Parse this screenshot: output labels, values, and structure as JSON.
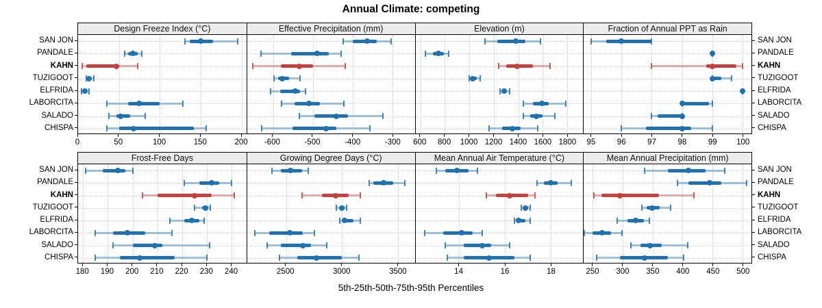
{
  "figure": {
    "title": "Annual Climate: competing",
    "caption": "5th-25th-50th-75th-95th Percentiles"
  },
  "colors": {
    "series_default": "#1f72b2",
    "series_highlight": "#c5403e",
    "strip_background": "#ececec",
    "gridline": "#c6c6c6",
    "border": "#000000"
  },
  "stations": [
    "SAN JON",
    "PANDALE",
    "KAHN",
    "TUZIGOOT",
    "ELFRIDA",
    "LABORCITA",
    "SALADO",
    "CHISPA"
  ],
  "highlight_station": "KAHN",
  "chart_data": {
    "type": "scatter",
    "subtype": "percentile-interval-dotplot-trellis",
    "percentiles": [
      5,
      25,
      50,
      75,
      95
    ],
    "layout": {
      "rows": 2,
      "cols": 4,
      "grid": "dotted",
      "legend": "none",
      "row_labels_both_sides": true
    },
    "panels": [
      {
        "title": "Design Freeze Index (°C)",
        "xlim": [
          0,
          206
        ],
        "ticks": [
          0,
          50,
          100,
          150,
          200
        ],
        "series": [
          {
            "station": "SAN JON",
            "percentiles": [
              131,
              137,
              150,
              165,
              195
            ]
          },
          {
            "station": "PANDALE",
            "percentiles": [
              57,
              61,
              67,
              73,
              78
            ]
          },
          {
            "station": "KAHN",
            "percentiles": [
              5,
              10,
              47,
              50,
              73
            ]
          },
          {
            "station": "TUZIGOOT",
            "percentiles": [
              10,
              12,
              13,
              16,
              19
            ]
          },
          {
            "station": "ELFRIDA",
            "percentiles": [
              4,
              6,
              8,
              10,
              13
            ]
          },
          {
            "station": "LABORCITA",
            "percentiles": [
              35,
              61,
              75,
              100,
              128
            ]
          },
          {
            "station": "SALADO",
            "percentiles": [
              38,
              47,
              52,
              64,
              82
            ]
          },
          {
            "station": "CHISPA",
            "percentiles": [
              35,
              50,
              68,
              142,
              157
            ]
          }
        ]
      },
      {
        "title": "Effective Precipitation (mm)",
        "xlim": [
          -665,
          -245
        ],
        "ticks": [
          -600,
          -500,
          -400,
          -300
        ],
        "series": [
          {
            "station": "SAN JON",
            "percentiles": [
              -425,
              -400,
              -365,
              -340,
              -305
            ]
          },
          {
            "station": "PANDALE",
            "percentiles": [
              -630,
              -555,
              -490,
              -460,
              -430
            ]
          },
          {
            "station": "KAHN",
            "percentiles": [
              -650,
              -580,
              -535,
              -500,
              -420
            ]
          },
          {
            "station": "TUZIGOOT",
            "percentiles": [
              -597,
              -587,
              -577,
              -560,
              -532
            ]
          },
          {
            "station": "ELFRIDA",
            "percentiles": [
              -607,
              -582,
              -545,
              -533,
              -518
            ]
          },
          {
            "station": "LABORCITA",
            "percentiles": [
              -578,
              -547,
              -510,
              -482,
              -423
            ]
          },
          {
            "station": "SALADO",
            "percentiles": [
              -535,
              -497,
              -442,
              -412,
              -325
            ]
          },
          {
            "station": "CHISPA",
            "percentiles": [
              -628,
              -552,
              -467,
              -441,
              -357
            ]
          }
        ]
      },
      {
        "title": "Elevation (m)",
        "xlim": [
          560,
          1930
        ],
        "ticks": [
          600,
          800,
          1000,
          1200,
          1400,
          1600,
          1800
        ],
        "series": [
          {
            "station": "SAN JON",
            "percentiles": [
              1130,
              1230,
              1380,
              1460,
              1580
            ]
          },
          {
            "station": "PANDALE",
            "percentiles": [
              640,
              700,
              750,
              790,
              830
            ]
          },
          {
            "station": "KAHN",
            "percentiles": [
              1240,
              1300,
              1390,
              1520,
              1660
            ]
          },
          {
            "station": "TUZIGOOT",
            "percentiles": [
              1000,
              1015,
              1030,
              1060,
              1090
            ]
          },
          {
            "station": "ELFRIDA",
            "percentiles": [
              1250,
              1265,
              1285,
              1310,
              1330
            ]
          },
          {
            "station": "LABORCITA",
            "percentiles": [
              1440,
              1520,
              1590,
              1650,
              1790
            ]
          },
          {
            "station": "SALADO",
            "percentiles": [
              1440,
              1500,
              1550,
              1600,
              1700
            ]
          },
          {
            "station": "CHISPA",
            "percentiles": [
              1160,
              1270,
              1350,
              1420,
              1560
            ]
          }
        ]
      },
      {
        "title": "Fraction of Annual PPT as Rain",
        "xlim": [
          94.75,
          100.3
        ],
        "ticks": [
          95,
          96,
          97,
          98,
          99,
          100
        ],
        "series": [
          {
            "station": "SAN JON",
            "percentiles": [
              95,
              95.5,
              96,
              97,
              97
            ]
          },
          {
            "station": "PANDALE",
            "percentiles": [
              99,
              99,
              99,
              99,
              99
            ]
          },
          {
            "station": "KAHN",
            "percentiles": [
              97,
              98.8,
              99,
              99.8,
              100
            ]
          },
          {
            "station": "TUZIGOOT",
            "percentiles": [
              99,
              99,
              99,
              99.3,
              99.65
            ]
          },
          {
            "station": "ELFRIDA",
            "percentiles": [
              100,
              100,
              100,
              100,
              100
            ]
          },
          {
            "station": "LABORCITA",
            "percentiles": [
              98,
              98,
              98,
              98.9,
              99
            ]
          },
          {
            "station": "SALADO",
            "percentiles": [
              97,
              97.2,
              98,
              98,
              98
            ]
          },
          {
            "station": "CHISPA",
            "percentiles": [
              96,
              96.8,
              98,
              98.3,
              99
            ]
          }
        ]
      },
      {
        "title": "Frost-Free Days",
        "xlim": [
          178,
          246
        ],
        "ticks": [
          180,
          190,
          200,
          210,
          220,
          230,
          240
        ],
        "series": [
          {
            "station": "SAN JON",
            "percentiles": [
              181,
              188,
              194,
              197,
              200
            ]
          },
          {
            "station": "PANDALE",
            "percentiles": [
              221,
              227,
              232,
              235,
              240
            ]
          },
          {
            "station": "KAHN",
            "percentiles": [
              204,
              210,
              225,
              232,
              241
            ]
          },
          {
            "station": "TUZIGOOT",
            "percentiles": [
              225,
              228,
              229.5,
              230.5,
              231.5
            ]
          },
          {
            "station": "ELFRIDA",
            "percentiles": [
              215,
              221,
              224,
              227,
              229
            ]
          },
          {
            "station": "LABORCITA",
            "percentiles": [
              185,
              192,
              198,
              205,
              216
            ]
          },
          {
            "station": "SALADO",
            "percentiles": [
              192,
              200,
              209,
              212,
              231
            ]
          },
          {
            "station": "CHISPA",
            "percentiles": [
              185,
              195,
              203,
              217,
              230
            ]
          }
        ]
      },
      {
        "title": "Growing Degree Days (°C)",
        "xlim": [
          2150,
          3650
        ],
        "ticks": [
          2500,
          3000,
          3500
        ],
        "series": [
          {
            "station": "SAN JON",
            "percentiles": [
              2370,
              2450,
              2540,
              2640,
              2700
            ]
          },
          {
            "station": "PANDALE",
            "percentiles": [
              3240,
              3280,
              3370,
              3460,
              3560
            ]
          },
          {
            "station": "KAHN",
            "percentiles": [
              2640,
              2820,
              2940,
              3060,
              3160
            ]
          },
          {
            "station": "TUZIGOOT",
            "percentiles": [
              2950,
              2980,
              3000,
              3020,
              3040
            ]
          },
          {
            "station": "ELFRIDA",
            "percentiles": [
              2980,
              3000,
              3020,
              3100,
              3160
            ]
          },
          {
            "station": "LABORCITA",
            "percentiles": [
              2220,
              2350,
              2530,
              2650,
              2750
            ]
          },
          {
            "station": "SALADO",
            "percentiles": [
              2330,
              2450,
              2650,
              2720,
              2860
            ]
          },
          {
            "station": "CHISPA",
            "percentiles": [
              2440,
              2600,
              2770,
              3000,
              3150
            ]
          }
        ]
      },
      {
        "title": "Mean Annual Air Temperature (°C)",
        "xlim": [
          12.1,
          19.4
        ],
        "ticks": [
          14,
          16,
          18
        ],
        "series": [
          {
            "station": "SAN JON",
            "percentiles": [
              13.0,
              13.4,
              13.9,
              14.4,
              14.8
            ]
          },
          {
            "station": "PANDALE",
            "percentiles": [
              17.4,
              17.7,
              18.0,
              18.3,
              18.9
            ]
          },
          {
            "station": "KAHN",
            "percentiles": [
              15.2,
              15.6,
              16.2,
              17.0,
              17.3
            ]
          },
          {
            "station": "TUZIGOOT",
            "percentiles": [
              16.7,
              16.8,
              16.9,
              17.0,
              17.1
            ]
          },
          {
            "station": "ELFRIDA",
            "percentiles": [
              16.4,
              16.5,
              16.6,
              16.9,
              17.1
            ]
          },
          {
            "station": "LABORCITA",
            "percentiles": [
              12.5,
              13.3,
              14.1,
              14.6,
              15.0
            ]
          },
          {
            "station": "SALADO",
            "percentiles": [
              13.4,
              14.2,
              15.0,
              15.4,
              16.2
            ]
          },
          {
            "station": "CHISPA",
            "percentiles": [
              13.5,
              14.2,
              15.3,
              16.4,
              17.1
            ]
          }
        ]
      },
      {
        "title": "Mean Annual Precipitation (mm)",
        "xlim": [
          235,
          515
        ],
        "ticks": [
          250,
          300,
          350,
          400,
          450,
          500
        ],
        "series": [
          {
            "station": "SAN JON",
            "percentiles": [
              337,
              375,
              410,
              438,
              470
            ]
          },
          {
            "station": "PANDALE",
            "percentiles": [
              392,
              410,
              445,
              465,
              507
            ]
          },
          {
            "station": "KAHN",
            "percentiles": [
              252,
              265,
              295,
              360,
              419
            ]
          },
          {
            "station": "TUZIGOOT",
            "percentiles": [
              332,
              340,
              349,
              362,
              380
            ]
          },
          {
            "station": "ELFRIDA",
            "percentiles": [
              291,
              308,
              322,
              335,
              344
            ]
          },
          {
            "station": "LABORCITA",
            "percentiles": [
              236,
              250,
              266,
              280,
              299
            ]
          },
          {
            "station": "SALADO",
            "percentiles": [
              314,
              330,
              346,
              365,
              409
            ]
          },
          {
            "station": "CHISPA",
            "percentiles": [
              257,
              295,
              337,
              375,
              402
            ]
          }
        ]
      }
    ]
  }
}
